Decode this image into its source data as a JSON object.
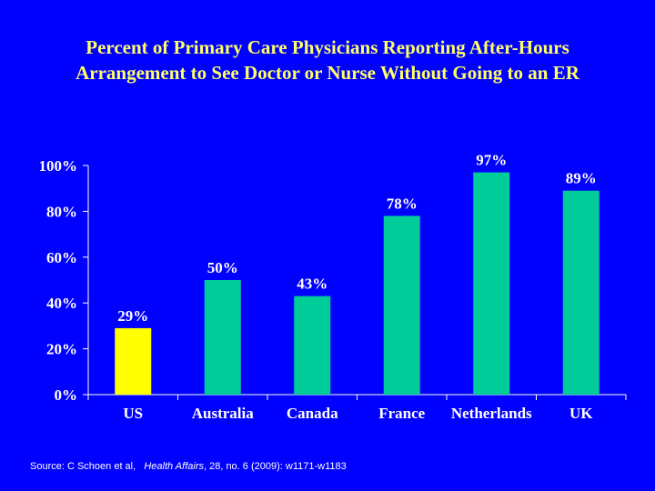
{
  "title_lines": [
    "Percent of Primary Care Physicians Reporting After-Hours",
    "Arrangement to See Doctor or Nurse Without Going to an ER"
  ],
  "source": {
    "prefix": "Source: C Schoen et al,",
    "journal": "Health Affairs",
    "suffix": ", 28, no. 6 (2009): w1171-w1183"
  },
  "chart_data": {
    "type": "bar",
    "title": "Percent of Primary Care Physicians Reporting After-Hours Arrangement to See Doctor or Nurse Without Going to an ER",
    "categories": [
      "US",
      "Australia",
      "Canada",
      "France",
      "Netherlands",
      "UK"
    ],
    "values": [
      29,
      50,
      43,
      78,
      97,
      89
    ],
    "value_labels": [
      "29%",
      "50%",
      "43%",
      "78%",
      "97%",
      "89%"
    ],
    "bar_colors": [
      "#ffff00",
      "#00cc99",
      "#00cc99",
      "#00cc99",
      "#00cc99",
      "#00cc99"
    ],
    "yticks": [
      0,
      20,
      40,
      60,
      80,
      100
    ],
    "ytick_labels": [
      "0%",
      "20%",
      "40%",
      "60%",
      "80%",
      "100%"
    ],
    "ylim": [
      0,
      100
    ],
    "xlabel": "",
    "ylabel": "",
    "grid": false,
    "legend": "none"
  }
}
